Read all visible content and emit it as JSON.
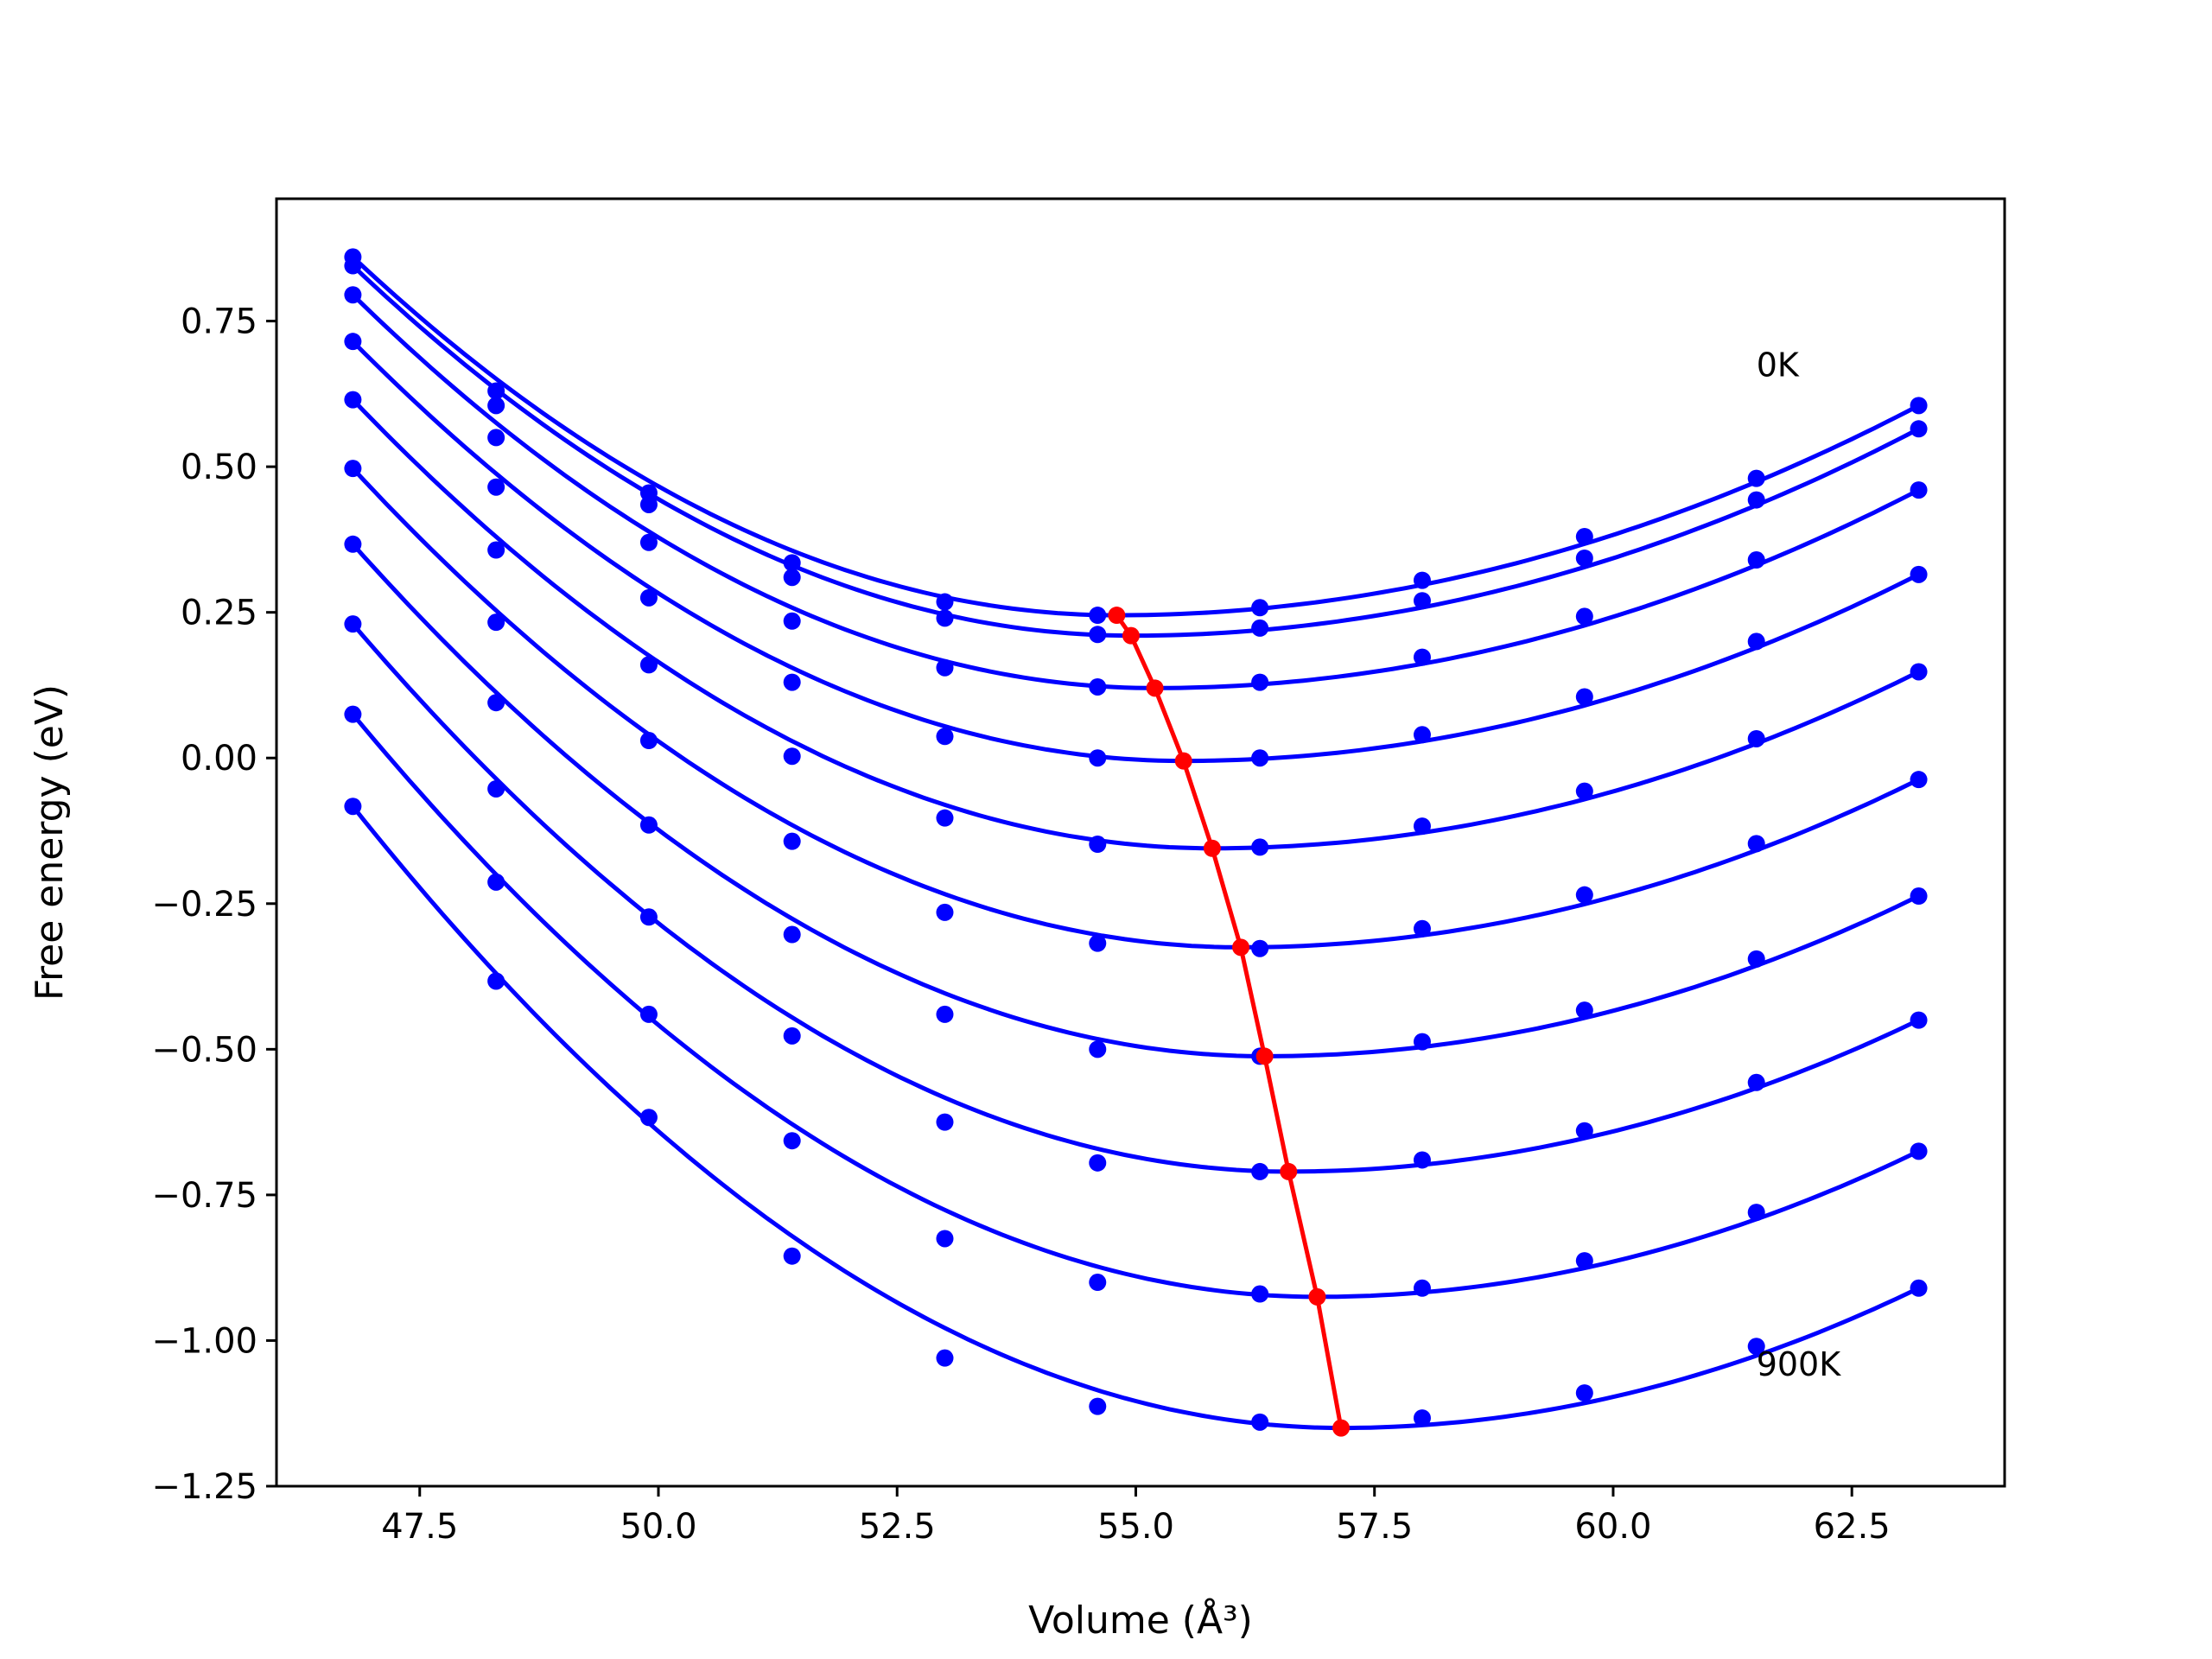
{
  "chart_data": {
    "type": "line",
    "title": "",
    "xlabel": "Volume (Å³)",
    "ylabel": "Free energy (eV)",
    "xlim": [
      46.0,
      64.1
    ],
    "ylim": [
      -1.25,
      0.96
    ],
    "xticks": [
      47.5,
      50.0,
      52.5,
      55.0,
      57.5,
      60.0,
      62.5
    ],
    "xtick_labels": [
      "47.5",
      "50.0",
      "52.5",
      "55.0",
      "57.5",
      "60.0",
      "62.5"
    ],
    "yticks": [
      0.75,
      0.5,
      0.25,
      0.0,
      -0.25,
      -0.5,
      -0.75,
      -1.0,
      -1.25
    ],
    "ytick_labels": [
      "0.75",
      "0.50",
      "0.25",
      "0.00",
      "−0.25",
      "−0.50",
      "−0.75",
      "−1.00",
      "−1.25"
    ],
    "grid": false,
    "legend": "none",
    "colors": {
      "curves": "#0000ff",
      "minimum_path": "#ff0000"
    },
    "x": [
      46.8,
      48.3,
      49.9,
      51.4,
      53.0,
      54.6,
      56.3,
      58.0,
      59.7,
      61.5,
      63.2
    ],
    "series": [
      {
        "values": [
          0.86,
          0.63,
          0.455,
          0.335,
          0.268,
          0.245,
          0.258,
          0.305,
          0.38,
          0.48,
          0.605
        ],
        "curve_min": [
          54.8,
          0.245
        ]
      },
      {
        "values": [
          0.845,
          0.605,
          0.435,
          0.31,
          0.24,
          0.212,
          0.223,
          0.27,
          0.343,
          0.443,
          0.565
        ],
        "curve_min": [
          54.95,
          0.21
        ]
      },
      {
        "values": [
          0.795,
          0.55,
          0.37,
          0.235,
          0.155,
          0.122,
          0.13,
          0.173,
          0.243,
          0.34,
          0.46
        ],
        "curve_min": [
          55.2,
          0.12
        ]
      },
      {
        "values": [
          0.715,
          0.465,
          0.275,
          0.13,
          0.037,
          0.0,
          0.0,
          0.04,
          0.105,
          0.2,
          0.315
        ],
        "curve_min": [
          55.5,
          -0.005
        ]
      },
      {
        "values": [
          0.615,
          0.357,
          0.16,
          0.003,
          -0.103,
          -0.148,
          -0.153,
          -0.117,
          -0.057,
          0.033,
          0.148
        ],
        "curve_min": [
          55.8,
          -0.155
        ]
      },
      {
        "values": [
          0.497,
          0.233,
          0.03,
          -0.143,
          -0.265,
          -0.318,
          -0.327,
          -0.293,
          -0.235,
          -0.147,
          -0.037
        ],
        "curve_min": [
          56.1,
          -0.325
        ]
      },
      {
        "values": [
          0.367,
          0.095,
          -0.115,
          -0.303,
          -0.44,
          -0.5,
          -0.512,
          -0.487,
          -0.433,
          -0.345,
          -0.237
        ],
        "curve_min": [
          56.35,
          -0.512
        ]
      },
      {
        "values": [
          0.23,
          -0.053,
          -0.273,
          -0.477,
          -0.625,
          -0.695,
          -0.71,
          -0.69,
          -0.64,
          -0.557,
          -0.45
        ],
        "curve_min": [
          56.6,
          -0.71
        ]
      },
      {
        "values": [
          0.075,
          -0.213,
          -0.44,
          -0.657,
          -0.825,
          -0.9,
          -0.92,
          -0.91,
          -0.863,
          -0.78,
          -0.675
        ],
        "curve_min": [
          56.9,
          -0.925
        ]
      },
      {
        "values": [
          -0.083,
          -0.383,
          -0.617,
          -0.855,
          -1.03,
          -1.113,
          -1.14,
          -1.133,
          -1.09,
          -1.01,
          -0.91
        ],
        "curve_min": [
          57.15,
          -1.15
        ]
      }
    ],
    "minimum_path": {
      "x": [
        54.8,
        54.95,
        55.2,
        55.5,
        55.8,
        56.1,
        56.35,
        56.6,
        56.9,
        57.15
      ],
      "y": [
        0.245,
        0.21,
        0.12,
        -0.005,
        -0.155,
        -0.325,
        -0.512,
        -0.71,
        -0.925,
        -1.15
      ]
    },
    "annotations": [
      {
        "text": "0K",
        "x": 61.5,
        "y": 0.655
      },
      {
        "text": "900K",
        "x": 61.5,
        "y": -1.06
      }
    ]
  }
}
